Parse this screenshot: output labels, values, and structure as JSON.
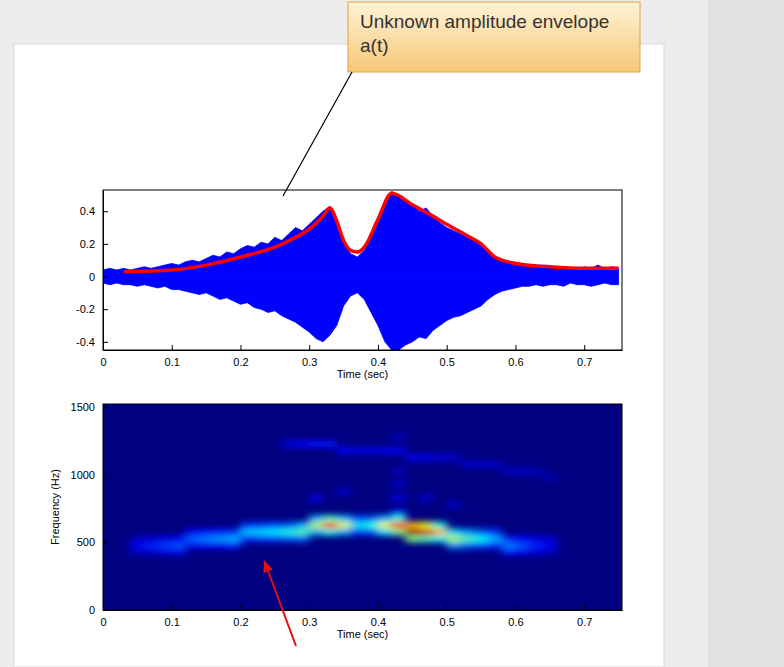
{
  "chart_data": [
    {
      "type": "line",
      "xlabel": "Time (sec)",
      "annotation": "Unknown amplitude envelope a(t)",
      "xlim": [
        0,
        0.755
      ],
      "ylim": [
        -0.45,
        0.53
      ],
      "xticks": [
        0,
        0.1,
        0.2,
        0.3,
        0.4,
        0.5,
        0.6,
        0.7
      ],
      "yticks": [
        -0.4,
        -0.2,
        0,
        0.2,
        0.4
      ],
      "x": [
        0,
        0.01,
        0.02,
        0.03,
        0.04,
        0.05,
        0.06,
        0.07,
        0.08,
        0.09,
        0.1,
        0.11,
        0.12,
        0.13,
        0.14,
        0.15,
        0.16,
        0.17,
        0.18,
        0.19,
        0.2,
        0.21,
        0.22,
        0.23,
        0.24,
        0.25,
        0.26,
        0.27,
        0.28,
        0.29,
        0.3,
        0.31,
        0.32,
        0.33,
        0.34,
        0.35,
        0.36,
        0.37,
        0.38,
        0.39,
        0.4,
        0.41,
        0.42,
        0.43,
        0.44,
        0.45,
        0.46,
        0.47,
        0.48,
        0.49,
        0.5,
        0.51,
        0.52,
        0.53,
        0.54,
        0.55,
        0.56,
        0.57,
        0.58,
        0.59,
        0.6,
        0.61,
        0.62,
        0.63,
        0.64,
        0.65,
        0.66,
        0.67,
        0.68,
        0.69,
        0.7,
        0.71,
        0.72,
        0.73,
        0.74,
        0.75
      ],
      "series": [
        {
          "type": "area",
          "color": "#0000ff",
          "values": [
            0.04,
            0.05,
            0.04,
            0.05,
            0.04,
            0.05,
            0.06,
            0.05,
            0.06,
            0.07,
            0.08,
            0.07,
            0.09,
            0.1,
            0.09,
            0.11,
            0.13,
            0.12,
            0.15,
            0.14,
            0.17,
            0.19,
            0.18,
            0.21,
            0.2,
            0.24,
            0.22,
            0.26,
            0.3,
            0.28,
            0.32,
            0.36,
            0.4,
            0.43,
            0.34,
            0.22,
            0.14,
            0.12,
            0.16,
            0.24,
            0.33,
            0.44,
            0.52,
            0.5,
            0.47,
            0.44,
            0.4,
            0.42,
            0.37,
            0.33,
            0.3,
            0.28,
            0.26,
            0.24,
            0.22,
            0.2,
            0.15,
            0.12,
            0.1,
            0.09,
            0.08,
            0.07,
            0.06,
            0.07,
            0.05,
            0.06,
            0.05,
            0.06,
            0.05,
            0.04,
            0.06,
            0.05,
            0.07,
            0.05,
            0.06,
            0.05
          ]
        },
        {
          "type": "area",
          "color": "#0000ff",
          "values": [
            -0.04,
            -0.05,
            -0.04,
            -0.05,
            -0.05,
            -0.06,
            -0.05,
            -0.06,
            -0.07,
            -0.06,
            -0.08,
            -0.08,
            -0.09,
            -0.1,
            -0.11,
            -0.1,
            -0.12,
            -0.14,
            -0.13,
            -0.15,
            -0.17,
            -0.16,
            -0.19,
            -0.2,
            -0.22,
            -0.21,
            -0.24,
            -0.26,
            -0.28,
            -0.31,
            -0.34,
            -0.38,
            -0.4,
            -0.36,
            -0.3,
            -0.18,
            -0.12,
            -0.1,
            -0.14,
            -0.22,
            -0.3,
            -0.4,
            -0.45,
            -0.45,
            -0.42,
            -0.4,
            -0.37,
            -0.38,
            -0.33,
            -0.3,
            -0.27,
            -0.25,
            -0.24,
            -0.22,
            -0.2,
            -0.18,
            -0.14,
            -0.11,
            -0.09,
            -0.08,
            -0.07,
            -0.06,
            -0.06,
            -0.05,
            -0.06,
            -0.05,
            -0.05,
            -0.06,
            -0.04,
            -0.05,
            -0.05,
            -0.06,
            -0.05,
            -0.04,
            -0.05,
            -0.05
          ]
        },
        {
          "type": "line",
          "color": "#ff0000",
          "x": [
            0.03,
            0.1,
            0.15,
            0.2,
            0.25,
            0.28,
            0.3,
            0.32,
            0.33,
            0.34,
            0.35,
            0.36,
            0.37,
            0.38,
            0.4,
            0.42,
            0.45,
            0.48,
            0.5,
            0.53,
            0.55,
            0.57,
            0.6,
            0.65,
            0.7,
            0.75
          ],
          "values": [
            0.03,
            0.04,
            0.07,
            0.12,
            0.18,
            0.24,
            0.29,
            0.37,
            0.42,
            0.34,
            0.22,
            0.16,
            0.15,
            0.18,
            0.35,
            0.51,
            0.44,
            0.37,
            0.32,
            0.25,
            0.2,
            0.12,
            0.08,
            0.06,
            0.05,
            0.05
          ]
        }
      ]
    },
    {
      "type": "heatmap",
      "xlabel": "Time (sec)",
      "ylabel": "Frequency (Hz)",
      "xlim": [
        0,
        0.755
      ],
      "ylim": [
        0,
        1520
      ],
      "xticks": [
        0,
        0.1,
        0.2,
        0.3,
        0.4,
        0.5,
        0.6,
        0.7
      ],
      "yticks": [
        0,
        500,
        1000,
        1500
      ],
      "clim": [
        0,
        1
      ],
      "cell_width": 0.02,
      "cell_height": 50,
      "cells": [
        [
          0.04,
          400,
          0.06
        ],
        [
          0.04,
          450,
          0.12
        ],
        [
          0.04,
          500,
          0.06
        ],
        [
          0.06,
          400,
          0.07
        ],
        [
          0.06,
          450,
          0.15
        ],
        [
          0.06,
          500,
          0.08
        ],
        [
          0.08,
          400,
          0.09
        ],
        [
          0.08,
          450,
          0.18
        ],
        [
          0.08,
          500,
          0.09
        ],
        [
          0.1,
          400,
          0.1
        ],
        [
          0.1,
          450,
          0.2
        ],
        [
          0.1,
          500,
          0.12
        ],
        [
          0.12,
          450,
          0.11
        ],
        [
          0.12,
          500,
          0.22
        ],
        [
          0.12,
          550,
          0.12
        ],
        [
          0.14,
          450,
          0.12
        ],
        [
          0.14,
          500,
          0.25
        ],
        [
          0.14,
          550,
          0.14
        ],
        [
          0.16,
          450,
          0.13
        ],
        [
          0.16,
          500,
          0.27
        ],
        [
          0.16,
          550,
          0.15
        ],
        [
          0.18,
          450,
          0.15
        ],
        [
          0.18,
          500,
          0.3
        ],
        [
          0.18,
          550,
          0.16
        ],
        [
          0.2,
          500,
          0.16
        ],
        [
          0.2,
          550,
          0.32
        ],
        [
          0.2,
          600,
          0.17
        ],
        [
          0.22,
          500,
          0.17
        ],
        [
          0.22,
          550,
          0.34
        ],
        [
          0.22,
          600,
          0.18
        ],
        [
          0.24,
          500,
          0.18
        ],
        [
          0.24,
          550,
          0.36
        ],
        [
          0.24,
          600,
          0.2
        ],
        [
          0.26,
          500,
          0.2
        ],
        [
          0.26,
          550,
          0.4
        ],
        [
          0.26,
          600,
          0.22
        ],
        [
          0.28,
          500,
          0.22
        ],
        [
          0.28,
          550,
          0.45
        ],
        [
          0.28,
          600,
          0.3
        ],
        [
          0.3,
          550,
          0.3
        ],
        [
          0.3,
          600,
          0.55
        ],
        [
          0.3,
          650,
          0.3
        ],
        [
          0.32,
          550,
          0.4
        ],
        [
          0.32,
          600,
          0.82
        ],
        [
          0.32,
          650,
          0.45
        ],
        [
          0.34,
          550,
          0.3
        ],
        [
          0.34,
          600,
          0.6
        ],
        [
          0.34,
          650,
          0.32
        ],
        [
          0.36,
          550,
          0.18
        ],
        [
          0.36,
          600,
          0.35
        ],
        [
          0.36,
          650,
          0.2
        ],
        [
          0.38,
          550,
          0.2
        ],
        [
          0.38,
          600,
          0.4
        ],
        [
          0.38,
          650,
          0.22
        ],
        [
          0.4,
          550,
          0.35
        ],
        [
          0.4,
          600,
          0.6
        ],
        [
          0.4,
          650,
          0.3
        ],
        [
          0.42,
          550,
          0.5
        ],
        [
          0.42,
          600,
          0.85
        ],
        [
          0.42,
          650,
          0.42
        ],
        [
          0.44,
          500,
          0.5
        ],
        [
          0.44,
          550,
          0.98
        ],
        [
          0.44,
          600,
          0.7
        ],
        [
          0.46,
          500,
          0.45
        ],
        [
          0.46,
          550,
          0.92
        ],
        [
          0.46,
          600,
          0.6
        ],
        [
          0.48,
          500,
          0.38
        ],
        [
          0.48,
          550,
          0.7
        ],
        [
          0.48,
          600,
          0.4
        ],
        [
          0.5,
          450,
          0.28
        ],
        [
          0.5,
          500,
          0.55
        ],
        [
          0.5,
          550,
          0.35
        ],
        [
          0.52,
          450,
          0.22
        ],
        [
          0.52,
          500,
          0.45
        ],
        [
          0.52,
          550,
          0.28
        ],
        [
          0.54,
          450,
          0.19
        ],
        [
          0.54,
          500,
          0.38
        ],
        [
          0.54,
          550,
          0.22
        ],
        [
          0.56,
          450,
          0.15
        ],
        [
          0.56,
          500,
          0.3
        ],
        [
          0.56,
          550,
          0.17
        ],
        [
          0.58,
          400,
          0.12
        ],
        [
          0.58,
          450,
          0.25
        ],
        [
          0.58,
          500,
          0.15
        ],
        [
          0.6,
          400,
          0.1
        ],
        [
          0.6,
          450,
          0.2
        ],
        [
          0.6,
          500,
          0.12
        ],
        [
          0.62,
          400,
          0.08
        ],
        [
          0.62,
          450,
          0.15
        ],
        [
          0.62,
          500,
          0.09
        ],
        [
          0.64,
          400,
          0.06
        ],
        [
          0.64,
          450,
          0.12
        ],
        [
          0.64,
          500,
          0.07
        ],
        [
          0.26,
          1200,
          0.1
        ],
        [
          0.28,
          1200,
          0.12
        ],
        [
          0.3,
          1200,
          0.14
        ],
        [
          0.32,
          1200,
          0.14
        ],
        [
          0.34,
          1150,
          0.12
        ],
        [
          0.36,
          1150,
          0.1
        ],
        [
          0.38,
          1150,
          0.1
        ],
        [
          0.4,
          1150,
          0.11
        ],
        [
          0.42,
          1150,
          0.12
        ],
        [
          0.44,
          1100,
          0.11
        ],
        [
          0.46,
          1100,
          0.1
        ],
        [
          0.48,
          1100,
          0.09
        ],
        [
          0.5,
          1100,
          0.08
        ],
        [
          0.52,
          1050,
          0.08
        ],
        [
          0.54,
          1050,
          0.08
        ],
        [
          0.56,
          1050,
          0.07
        ],
        [
          0.58,
          1000,
          0.07
        ],
        [
          0.6,
          1000,
          0.07
        ],
        [
          0.62,
          1000,
          0.06
        ],
        [
          0.64,
          950,
          0.06
        ],
        [
          0.42,
          700,
          0.12
        ],
        [
          0.42,
          800,
          0.1
        ],
        [
          0.42,
          900,
          0.08
        ],
        [
          0.42,
          1000,
          0.07
        ],
        [
          0.42,
          1250,
          0.07
        ],
        [
          0.3,
          800,
          0.1
        ],
        [
          0.34,
          850,
          0.08
        ],
        [
          0.46,
          800,
          0.08
        ],
        [
          0.5,
          750,
          0.08
        ]
      ]
    }
  ]
}
